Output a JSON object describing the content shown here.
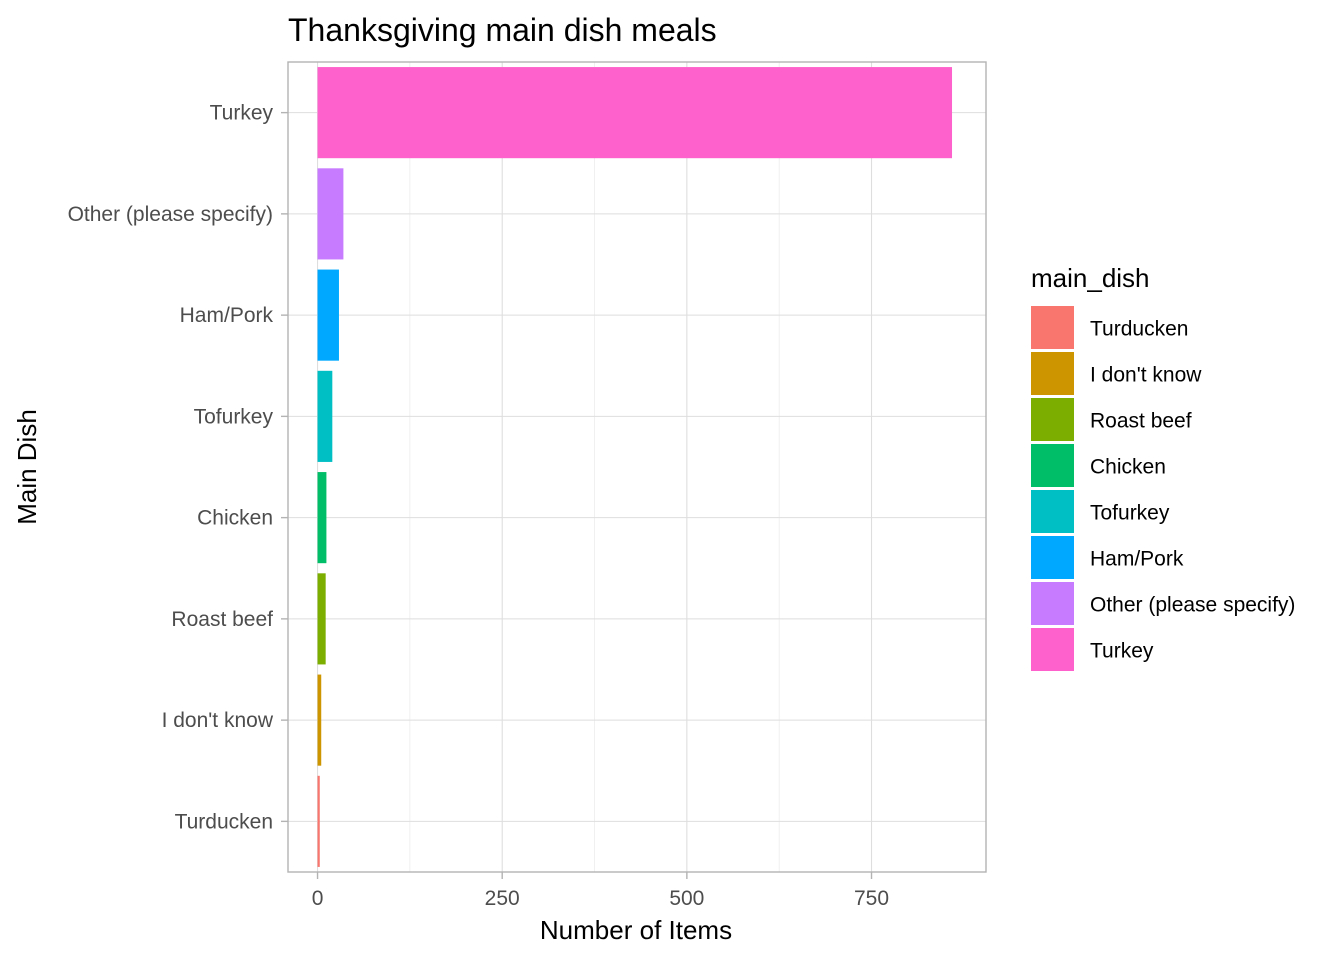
{
  "chart_data": {
    "type": "bar",
    "orientation": "horizontal",
    "title": "Thanksgiving main dish meals",
    "xlabel": "Number of Items",
    "ylabel": "Main Dish",
    "xlim": [
      -40,
      905
    ],
    "xticks": [
      0,
      250,
      500,
      750
    ],
    "xtick_labels": [
      "0",
      "250",
      "500",
      "750"
    ],
    "grid": true,
    "categories": [
      "Turkey",
      "Other (please specify)",
      "Ham/Pork",
      "Tofurkey",
      "Chicken",
      "Roast beef",
      "I don't know",
      "Turducken"
    ],
    "values": [
      859,
      35,
      29,
      20,
      12,
      11,
      5,
      3
    ],
    "colors": [
      "#FF61CC",
      "#C77CFF",
      "#00A9FF",
      "#00BFC4",
      "#00BE67",
      "#7CAE00",
      "#CD9600",
      "#F8766D"
    ],
    "legend": {
      "title": "main_dish",
      "position": "right",
      "items": [
        {
          "label": "Turducken",
          "color": "#F8766D"
        },
        {
          "label": "I don't know",
          "color": "#CD9600"
        },
        {
          "label": "Roast beef",
          "color": "#7CAE00"
        },
        {
          "label": "Chicken",
          "color": "#00BE67"
        },
        {
          "label": "Tofurkey",
          "color": "#00BFC4"
        },
        {
          "label": "Ham/Pork",
          "color": "#00A9FF"
        },
        {
          "label": "Other (please specify)",
          "color": "#C77CFF"
        },
        {
          "label": "Turkey",
          "color": "#FF61CC"
        }
      ]
    }
  }
}
